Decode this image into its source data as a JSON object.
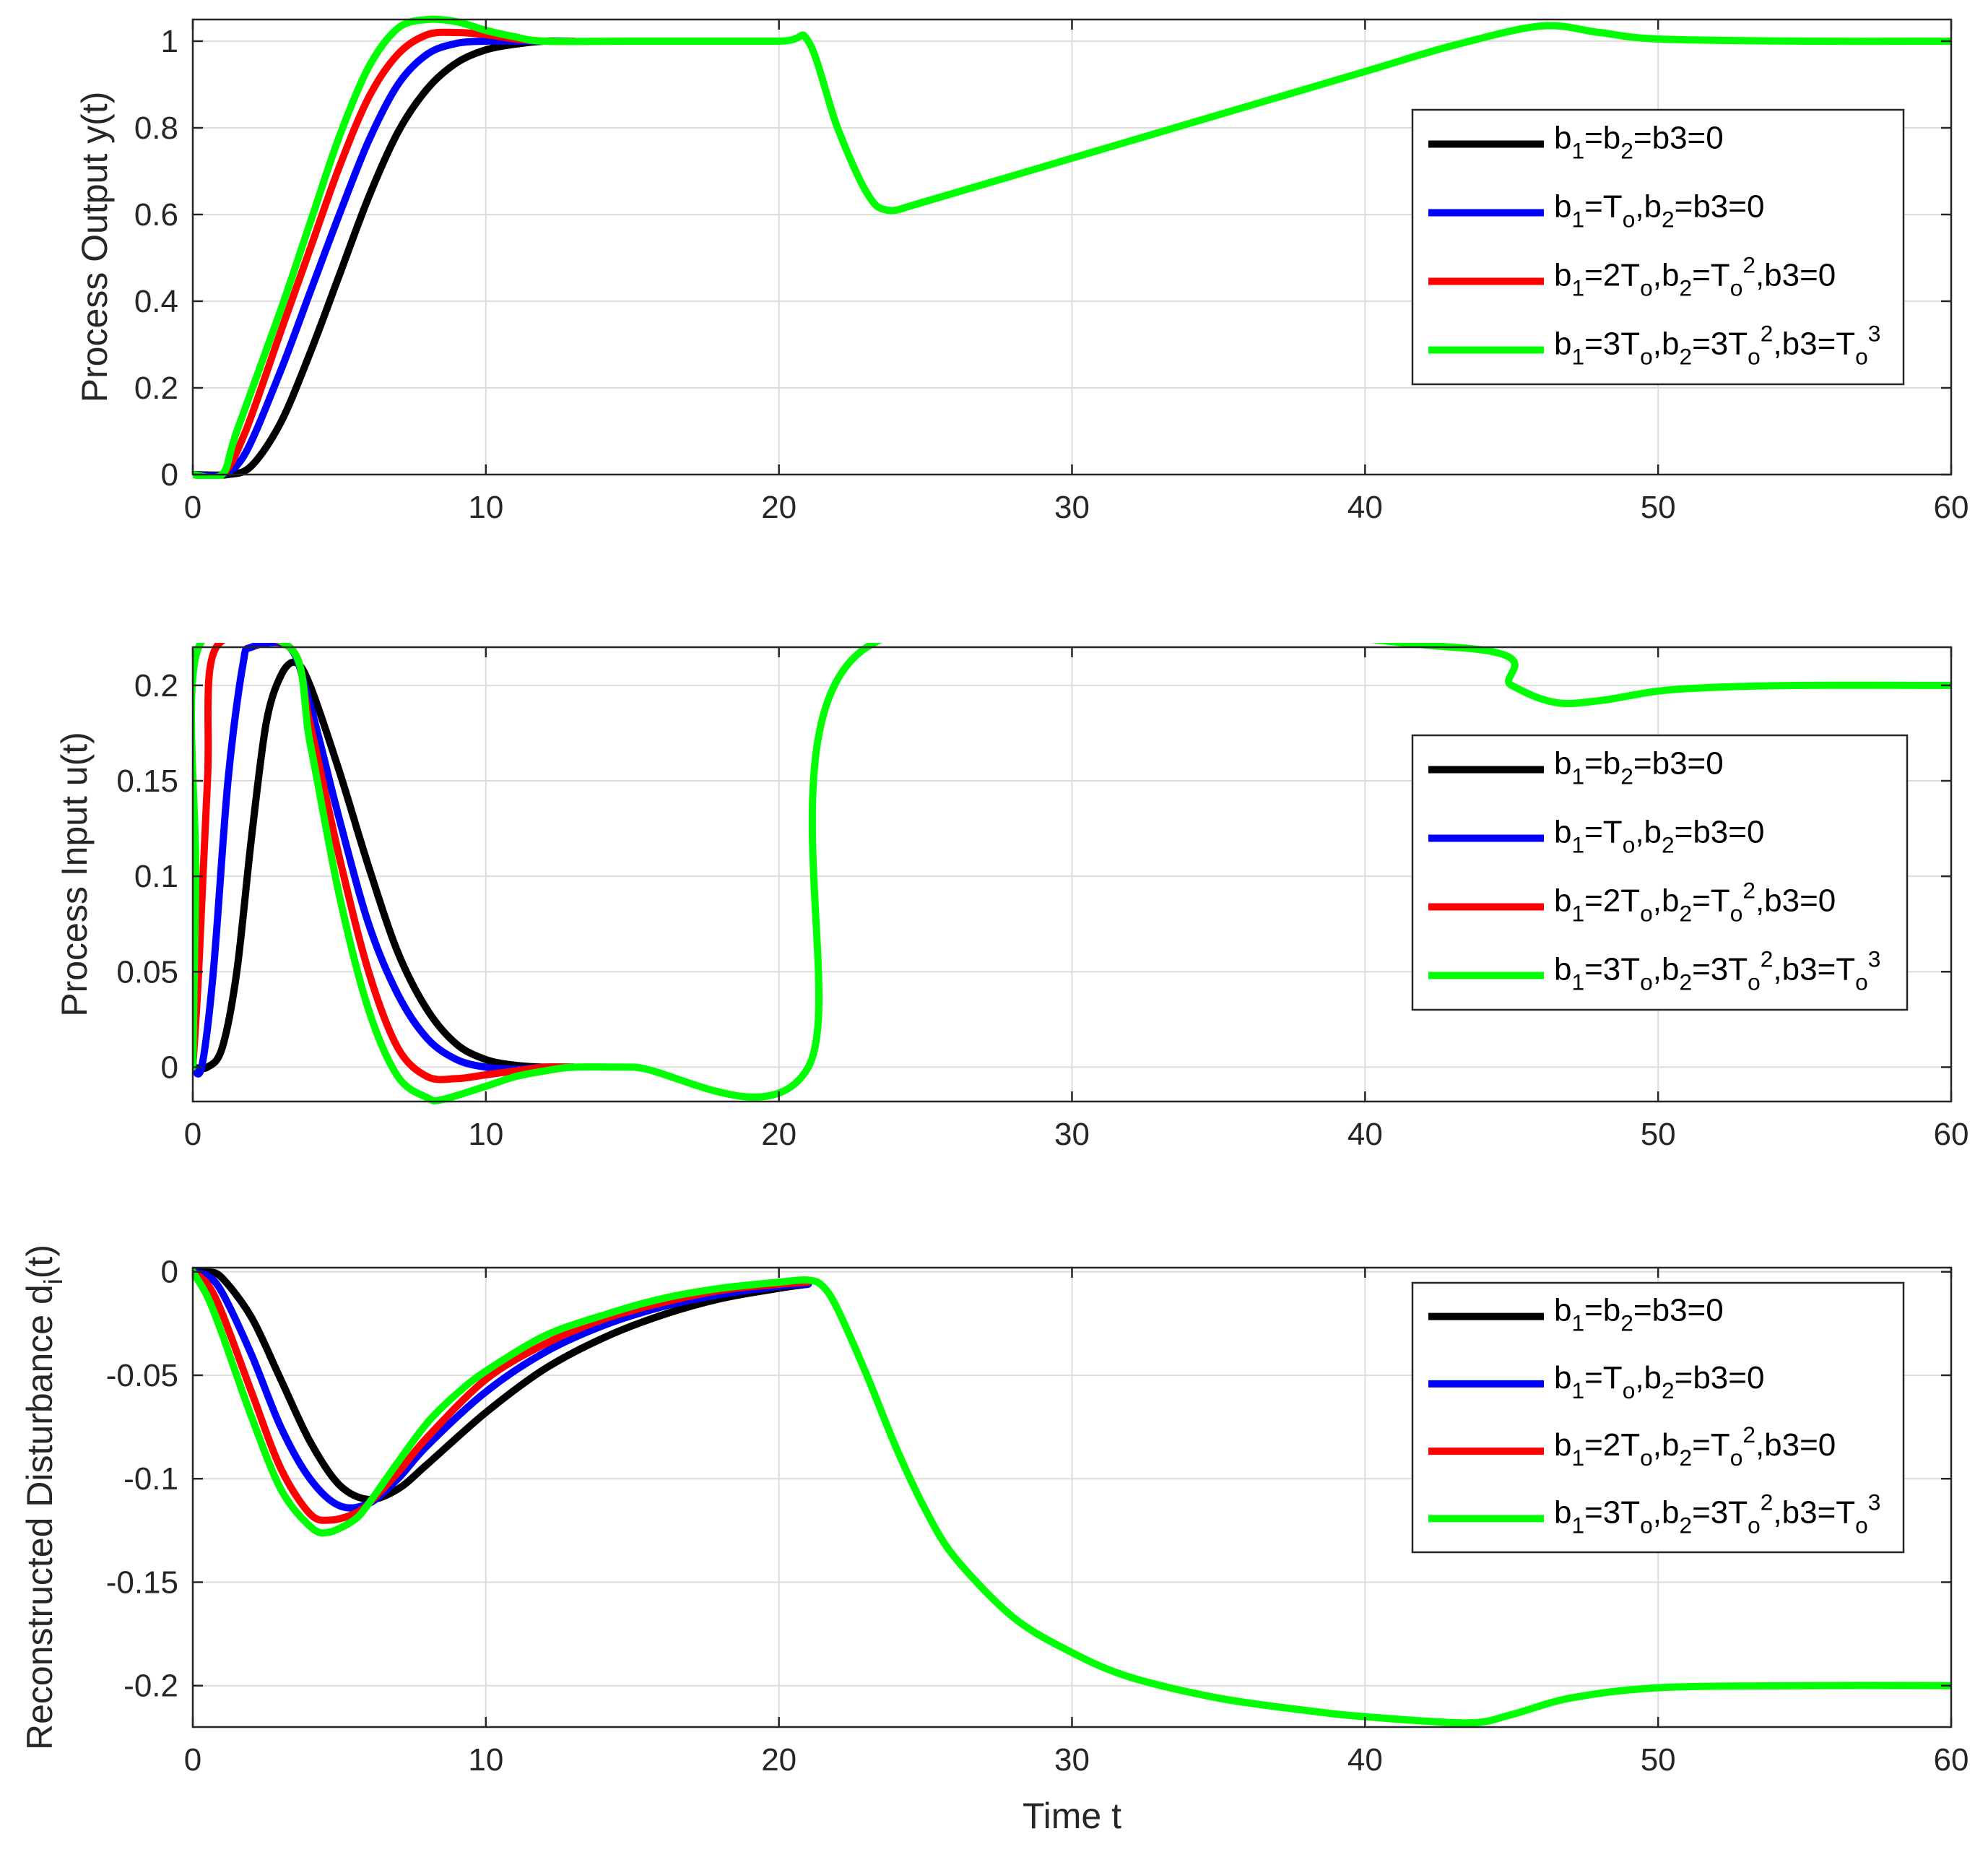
{
  "chart_data": [
    {
      "type": "line",
      "ylabel": "Process Output y(t)",
      "xlabel": "",
      "xlim": [
        0,
        60
      ],
      "ylim": [
        0,
        1.05
      ],
      "xticks": [
        0,
        10,
        20,
        30,
        40,
        50,
        60
      ],
      "yticks": [
        0,
        0.2,
        0.4,
        0.6,
        0.8,
        1
      ],
      "ytick_labels": [
        "0",
        "0.2",
        "0.4",
        "0.6",
        "0.8",
        "1"
      ],
      "grid": true,
      "legend_position": "center-right",
      "series": [
        {
          "name": "b_1=b_2=b3=0",
          "color": "#000000",
          "points": [
            [
              0,
              0
            ],
            [
              1.2,
              0
            ],
            [
              2,
              0.02
            ],
            [
              3,
              0.12
            ],
            [
              4,
              0.28
            ],
            [
              5,
              0.46
            ],
            [
              6,
              0.64
            ],
            [
              7,
              0.79
            ],
            [
              8,
              0.89
            ],
            [
              9,
              0.95
            ],
            [
              10,
              0.98
            ],
            [
              11,
              0.993
            ],
            [
              12,
              1.0
            ],
            [
              13,
              1.0
            ]
          ]
        },
        {
          "name": "b_1=T_o,b_2=b3=0",
          "color": "#0000ff",
          "points": [
            [
              0,
              0
            ],
            [
              1,
              0
            ],
            [
              1.8,
              0.05
            ],
            [
              3,
              0.24
            ],
            [
              4,
              0.42
            ],
            [
              5,
              0.6
            ],
            [
              6,
              0.77
            ],
            [
              7,
              0.9
            ],
            [
              8,
              0.97
            ],
            [
              9,
              0.995
            ],
            [
              10,
              1.0
            ],
            [
              11,
              1.0
            ],
            [
              12,
              1.0
            ],
            [
              13,
              1.0
            ]
          ]
        },
        {
          "name": "b_1=2T_o,b_2=T_o^2,b3=0",
          "color": "#ff0000",
          "points": [
            [
              0,
              0
            ],
            [
              1,
              0
            ],
            [
              1.8,
              0.1
            ],
            [
              3,
              0.33
            ],
            [
              4,
              0.52
            ],
            [
              5,
              0.71
            ],
            [
              6,
              0.87
            ],
            [
              7,
              0.97
            ],
            [
              8,
              1.015
            ],
            [
              9,
              1.02
            ],
            [
              10,
              1.015
            ],
            [
              11,
              1.005
            ],
            [
              12,
              1.0
            ],
            [
              13,
              1.0
            ]
          ]
        },
        {
          "name": "b_1=3T_o,b_2=3T_o^2,b3=T_o^3",
          "color": "#00ff00",
          "points": [
            [
              0,
              0
            ],
            [
              1,
              0
            ],
            [
              1.5,
              0.1
            ],
            [
              3,
              0.38
            ],
            [
              4,
              0.58
            ],
            [
              5,
              0.78
            ],
            [
              6,
              0.94
            ],
            [
              7,
              1.03
            ],
            [
              8,
              1.055
            ],
            [
              9,
              1.045
            ],
            [
              10,
              1.025
            ],
            [
              11,
              1.01
            ],
            [
              12,
              1.0
            ],
            [
              15,
              1.0
            ],
            [
              20,
              1.0
            ],
            [
              21,
              1.0
            ],
            [
              22,
              0.8
            ],
            [
              23,
              0.65
            ],
            [
              23.7,
              0.61
            ],
            [
              25,
              0.63
            ],
            [
              30,
              0.73
            ],
            [
              35,
              0.83
            ],
            [
              40,
              0.93
            ],
            [
              43,
              0.99
            ],
            [
              46,
              1.035
            ],
            [
              48,
              1.02
            ],
            [
              50,
              1.005
            ],
            [
              55,
              1.0
            ],
            [
              60,
              1.0
            ]
          ]
        }
      ]
    },
    {
      "type": "line",
      "ylabel": "Process Input u(t)",
      "xlabel": "",
      "xlim": [
        0,
        60
      ],
      "ylim": [
        -0.018,
        0.22
      ],
      "xticks": [
        0,
        10,
        20,
        30,
        40,
        50,
        60
      ],
      "yticks": [
        0,
        0.05,
        0.1,
        0.15,
        0.2
      ],
      "ytick_labels": [
        "0",
        "0.05",
        "0.1",
        "0.15",
        "0.2"
      ],
      "grid": true,
      "legend_position": "center-right",
      "series": [
        {
          "name": "b_1=b_2=b3=0",
          "color": "#000000",
          "points": [
            [
              0,
              0
            ],
            [
              0.5,
              0
            ],
            [
              1,
              0.01
            ],
            [
              1.5,
              0.05
            ],
            [
              2,
              0.12
            ],
            [
              2.5,
              0.18
            ],
            [
              3,
              0.205
            ],
            [
              3.5,
              0.212
            ],
            [
              4,
              0.2
            ],
            [
              5,
              0.155
            ],
            [
              6,
              0.105
            ],
            [
              7,
              0.06
            ],
            [
              8,
              0.03
            ],
            [
              9,
              0.012
            ],
            [
              10,
              0.004
            ],
            [
              11,
              0.001
            ],
            [
              12,
              0
            ],
            [
              13,
              0
            ]
          ]
        },
        {
          "name": "b_1=T_o,b_2=b3=0",
          "color": "#0000ff",
          "points": [
            [
              0,
              0
            ],
            [
              0.3,
              0
            ],
            [
              0.7,
              0.05
            ],
            [
              1.2,
              0.15
            ],
            [
              1.7,
              0.21
            ],
            [
              2,
              0.22
            ],
            [
              3.3,
              0.22
            ],
            [
              4,
              0.19
            ],
            [
              5,
              0.13
            ],
            [
              6,
              0.075
            ],
            [
              7,
              0.038
            ],
            [
              8,
              0.015
            ],
            [
              9,
              0.004
            ],
            [
              10,
              0
            ],
            [
              11,
              -0.001
            ],
            [
              12,
              0
            ],
            [
              13,
              0
            ]
          ]
        },
        {
          "name": "b_1=2T_o,b_2=T_o^2,b3=0",
          "color": "#ff0000",
          "points": [
            [
              0,
              0
            ],
            [
              0.2,
              0.05
            ],
            [
              0.5,
              0.15
            ],
            [
              0.8,
              0.22
            ],
            [
              3.3,
              0.22
            ],
            [
              4,
              0.18
            ],
            [
              5,
              0.11
            ],
            [
              6,
              0.05
            ],
            [
              7,
              0.01
            ],
            [
              8,
              -0.005
            ],
            [
              9,
              -0.006
            ],
            [
              10,
              -0.004
            ],
            [
              11,
              -0.002
            ],
            [
              12,
              0
            ],
            [
              13,
              0
            ]
          ]
        },
        {
          "name": "b_1=3T_o,b_2=3T_o^2,b3=T_o^3",
          "color": "#00ff00",
          "points": [
            [
              0,
              0
            ],
            [
              0.1,
              0.1
            ],
            [
              0.2,
              0.22
            ],
            [
              3.3,
              0.22
            ],
            [
              4,
              0.17
            ],
            [
              5,
              0.09
            ],
            [
              6,
              0.03
            ],
            [
              7,
              -0.005
            ],
            [
              8,
              -0.016
            ],
            [
              8.5,
              -0.017
            ],
            [
              10,
              -0.01
            ],
            [
              11,
              -0.005
            ],
            [
              12,
              -0.002
            ],
            [
              13,
              0
            ],
            [
              15,
              0
            ],
            [
              21,
              0
            ],
            [
              23,
              0.22
            ],
            [
              43,
              0.22
            ],
            [
              45,
              0.2
            ],
            [
              46.5,
              0.191
            ],
            [
              48,
              0.192
            ],
            [
              50,
              0.197
            ],
            [
              52,
              0.199
            ],
            [
              55,
              0.2
            ],
            [
              60,
              0.2
            ]
          ]
        }
      ]
    },
    {
      "type": "line",
      "ylabel": "Reconstructed Disturbance d_i(t)",
      "xlabel": "Time t",
      "xlim": [
        0,
        60
      ],
      "ylim": [
        -0.22,
        0.002
      ],
      "xticks": [
        0,
        10,
        20,
        30,
        40,
        50,
        60
      ],
      "yticks": [
        0,
        -0.05,
        -0.1,
        -0.15,
        -0.2
      ],
      "ytick_labels": [
        "0",
        "-0.05",
        "-0.1",
        "-0.15",
        "-0.2"
      ],
      "grid": true,
      "legend_position": "top-right",
      "series": [
        {
          "name": "b_1=b_2=b3=0",
          "color": "#000000",
          "points": [
            [
              0,
              0
            ],
            [
              0.5,
              0
            ],
            [
              1,
              -0.003
            ],
            [
              2,
              -0.022
            ],
            [
              3,
              -0.052
            ],
            [
              4,
              -0.082
            ],
            [
              5,
              -0.103
            ],
            [
              6,
              -0.11
            ],
            [
              7,
              -0.105
            ],
            [
              8,
              -0.093
            ],
            [
              10,
              -0.068
            ],
            [
              12,
              -0.047
            ],
            [
              14,
              -0.032
            ],
            [
              16,
              -0.021
            ],
            [
              18,
              -0.013
            ],
            [
              20,
              -0.008
            ],
            [
              21,
              -0.006
            ]
          ]
        },
        {
          "name": "b_1=T_o,b_2=b3=0",
          "color": "#0000ff",
          "points": [
            [
              0,
              0
            ],
            [
              0.5,
              -0.002
            ],
            [
              1,
              -0.01
            ],
            [
              2,
              -0.04
            ],
            [
              3,
              -0.075
            ],
            [
              4,
              -0.1
            ],
            [
              5,
              -0.113
            ],
            [
              6,
              -0.112
            ],
            [
              7,
              -0.1
            ],
            [
              8,
              -0.084
            ],
            [
              10,
              -0.058
            ],
            [
              12,
              -0.039
            ],
            [
              14,
              -0.026
            ],
            [
              16,
              -0.017
            ],
            [
              18,
              -0.011
            ],
            [
              20,
              -0.007
            ],
            [
              21,
              -0.006
            ]
          ]
        },
        {
          "name": "b_1=2T_o,b_2=T_o^2,b3=0",
          "color": "#ff0000",
          "points": [
            [
              0,
              0
            ],
            [
              0.5,
              -0.006
            ],
            [
              1,
              -0.02
            ],
            [
              2,
              -0.058
            ],
            [
              3,
              -0.095
            ],
            [
              4,
              -0.117
            ],
            [
              4.7,
              -0.12
            ],
            [
              5.5,
              -0.117
            ],
            [
              6,
              -0.112
            ],
            [
              7,
              -0.097
            ],
            [
              8,
              -0.08
            ],
            [
              10,
              -0.052
            ],
            [
              12,
              -0.035
            ],
            [
              14,
              -0.023
            ],
            [
              16,
              -0.015
            ],
            [
              18,
              -0.009
            ],
            [
              20,
              -0.006
            ],
            [
              21,
              -0.005
            ]
          ]
        },
        {
          "name": "b_1=3T_o,b_2=3T_o^2,b3=T_o^3",
          "color": "#00ff00",
          "points": [
            [
              0,
              0
            ],
            [
              0.5,
              -0.012
            ],
            [
              1,
              -0.03
            ],
            [
              2,
              -0.07
            ],
            [
              3,
              -0.105
            ],
            [
              4,
              -0.123
            ],
            [
              4.6,
              -0.126
            ],
            [
              5.5,
              -0.12
            ],
            [
              6,
              -0.112
            ],
            [
              7,
              -0.092
            ],
            [
              8,
              -0.073
            ],
            [
              9,
              -0.059
            ],
            [
              10,
              -0.048
            ],
            [
              12,
              -0.031
            ],
            [
              14,
              -0.021
            ],
            [
              16,
              -0.013
            ],
            [
              18,
              -0.008
            ],
            [
              20,
              -0.005
            ],
            [
              21,
              -0.004
            ],
            [
              21.5,
              -0.007
            ],
            [
              22,
              -0.018
            ],
            [
              23,
              -0.05
            ],
            [
              24,
              -0.085
            ],
            [
              25,
              -0.115
            ],
            [
              26,
              -0.138
            ],
            [
              28,
              -0.167
            ],
            [
              30,
              -0.184
            ],
            [
              32,
              -0.196
            ],
            [
              35,
              -0.206
            ],
            [
              38,
              -0.212
            ],
            [
              40,
              -0.215
            ],
            [
              43.5,
              -0.218
            ],
            [
              45,
              -0.214
            ],
            [
              47,
              -0.206
            ],
            [
              50,
              -0.201
            ],
            [
              55,
              -0.2
            ],
            [
              60,
              -0.2
            ]
          ]
        }
      ]
    }
  ]
}
